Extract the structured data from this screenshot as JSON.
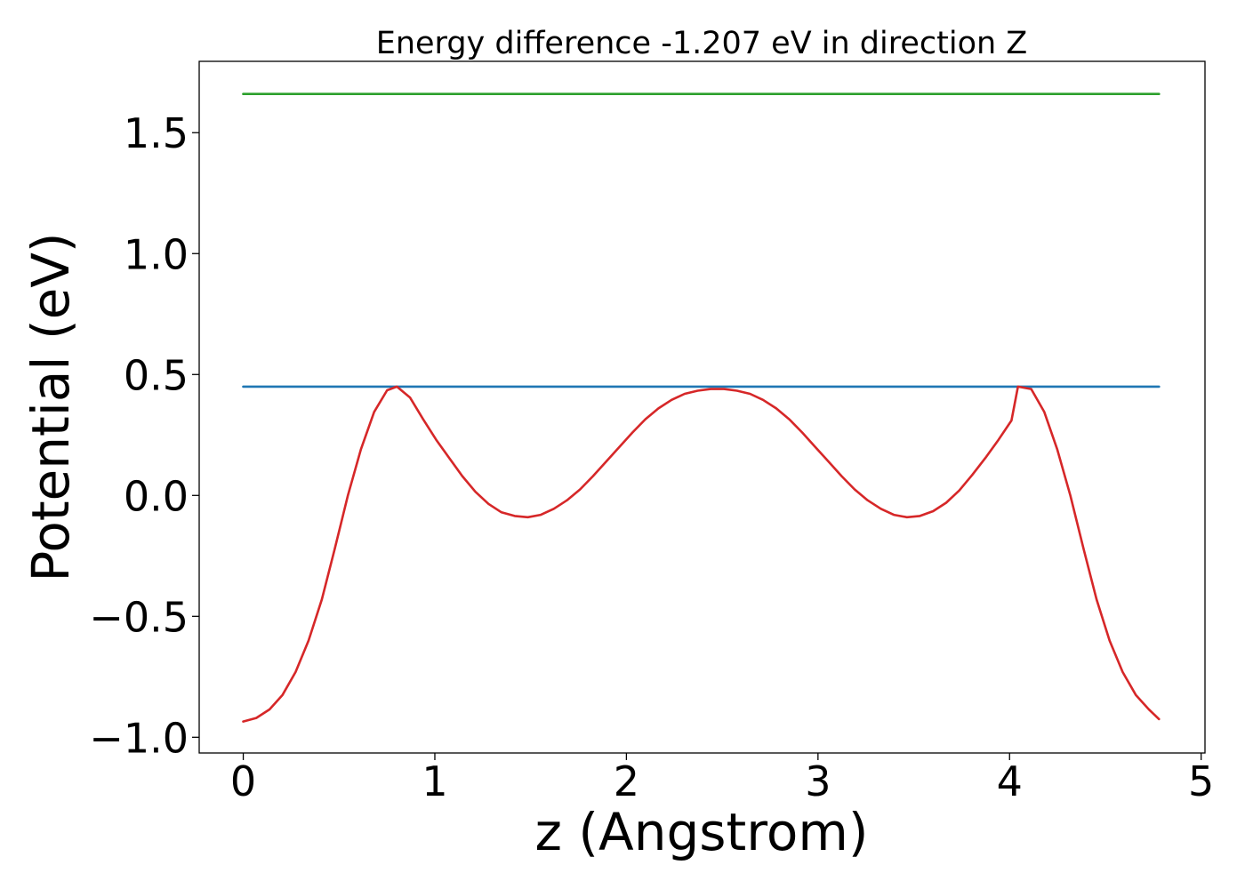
{
  "chart_data": {
    "type": "line",
    "title": "Energy difference -1.207 eV in direction Z",
    "xlabel": "z (Angstrom)",
    "ylabel": "Potential (eV)",
    "xlim": [
      -0.23,
      5.02
    ],
    "ylim": [
      -1.065,
      1.795
    ],
    "xticks": [
      0,
      1,
      2,
      3,
      4,
      5
    ],
    "xtick_labels": [
      "0",
      "1",
      "2",
      "3",
      "4",
      "5"
    ],
    "yticks": [
      -1.0,
      -0.5,
      0.0,
      0.5,
      1.0,
      1.5
    ],
    "ytick_labels": [
      "−1.0",
      "−0.5",
      "0.0",
      "0.5",
      "1.0",
      "1.5"
    ],
    "grid": false,
    "series": [
      {
        "color": "#2ca02c",
        "x": [
          0,
          4.78
        ],
        "y": [
          1.66,
          1.66
        ]
      },
      {
        "color": "#1f77b4",
        "x": [
          0,
          4.78
        ],
        "y": [
          0.45,
          0.45
        ]
      },
      {
        "color": "#d62728",
        "x": [
          0.0,
          0.068,
          0.137,
          0.205,
          0.273,
          0.341,
          0.41,
          0.478,
          0.546,
          0.614,
          0.683,
          0.751,
          0.802,
          0.87,
          0.939,
          1.007,
          1.075,
          1.143,
          1.212,
          1.28,
          1.348,
          1.417,
          1.485,
          1.553,
          1.621,
          1.69,
          1.758,
          1.826,
          1.894,
          1.963,
          2.031,
          2.099,
          2.167,
          2.236,
          2.304,
          2.372,
          2.44,
          2.509,
          2.577,
          2.645,
          2.713,
          2.782,
          2.85,
          2.918,
          2.986,
          3.055,
          3.123,
          3.191,
          3.259,
          3.328,
          3.396,
          3.464,
          3.532,
          3.601,
          3.669,
          3.737,
          3.805,
          3.874,
          3.942,
          4.01,
          4.044,
          4.113,
          4.181,
          4.249,
          4.317,
          4.386,
          4.454,
          4.522,
          4.59,
          4.659,
          4.727,
          4.78
        ],
        "y": [
          -0.935,
          -0.92,
          -0.885,
          -0.825,
          -0.73,
          -0.6,
          -0.43,
          -0.22,
          0.0,
          0.19,
          0.345,
          0.435,
          0.45,
          0.405,
          0.315,
          0.23,
          0.155,
          0.08,
          0.015,
          -0.035,
          -0.07,
          -0.085,
          -0.09,
          -0.08,
          -0.055,
          -0.02,
          0.025,
          0.08,
          0.14,
          0.2,
          0.26,
          0.315,
          0.36,
          0.395,
          0.42,
          0.433,
          0.44,
          0.44,
          0.433,
          0.42,
          0.395,
          0.36,
          0.315,
          0.26,
          0.2,
          0.14,
          0.08,
          0.025,
          -0.02,
          -0.055,
          -0.08,
          -0.09,
          -0.085,
          -0.065,
          -0.03,
          0.02,
          0.085,
          0.155,
          0.23,
          0.31,
          0.45,
          0.44,
          0.345,
          0.19,
          0.0,
          -0.22,
          -0.43,
          -0.6,
          -0.73,
          -0.825,
          -0.885,
          -0.925
        ]
      }
    ]
  }
}
